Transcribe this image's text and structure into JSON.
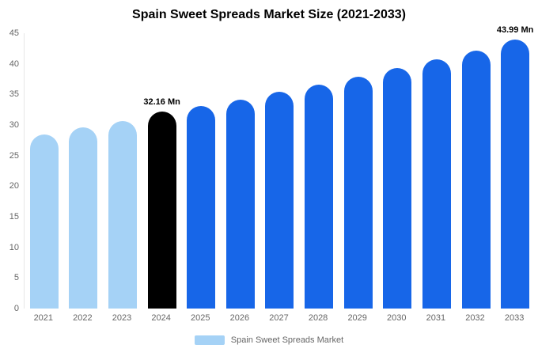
{
  "title": "Spain Sweet Spreads Market Size (2021-2033)",
  "colors": {
    "light_blue": "#a5d2f6",
    "primary_blue": "#1766e8",
    "highlight_black": "#000000",
    "axis_text": "#666666"
  },
  "legend": {
    "label": "Spain Sweet Spreads Market",
    "swatch_color": "#a5d2f6"
  },
  "chart_data": {
    "type": "bar",
    "title": "Spain Sweet Spreads Market Size (2021-2033)",
    "xlabel": "",
    "ylabel": "",
    "ylim": [
      0,
      45
    ],
    "yticks": [
      0,
      5,
      10,
      15,
      20,
      25,
      30,
      35,
      40,
      45
    ],
    "grid": "off",
    "legend_position": "bottom",
    "legend_entries": [
      "Spain Sweet Spreads Market"
    ],
    "categories": [
      "2021",
      "2022",
      "2023",
      "2024",
      "2025",
      "2026",
      "2027",
      "2028",
      "2029",
      "2030",
      "2031",
      "2032",
      "2033"
    ],
    "values": [
      28.5,
      29.6,
      30.7,
      32.16,
      33.1,
      34.2,
      35.4,
      36.6,
      37.9,
      39.3,
      40.7,
      42.2,
      43.99
    ],
    "bar_colors": [
      "#a5d2f6",
      "#a5d2f6",
      "#a5d2f6",
      "#000000",
      "#1766e8",
      "#1766e8",
      "#1766e8",
      "#1766e8",
      "#1766e8",
      "#1766e8",
      "#1766e8",
      "#1766e8",
      "#1766e8"
    ],
    "data_labels": {
      "2024": "32.16 Mn",
      "2033": "43.99 Mn"
    }
  }
}
